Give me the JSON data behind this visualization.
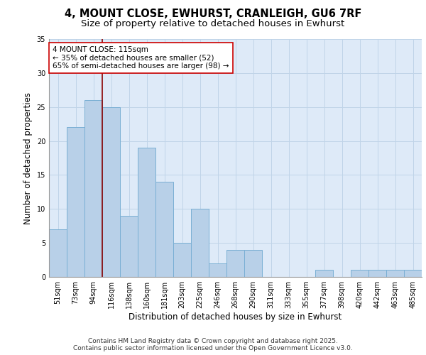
{
  "title_line1": "4, MOUNT CLOSE, EWHURST, CRANLEIGH, GU6 7RF",
  "title_line2": "Size of property relative to detached houses in Ewhurst",
  "xlabel": "Distribution of detached houses by size in Ewhurst",
  "ylabel": "Number of detached properties",
  "categories": [
    "51sqm",
    "73sqm",
    "94sqm",
    "116sqm",
    "138sqm",
    "160sqm",
    "181sqm",
    "203sqm",
    "225sqm",
    "246sqm",
    "268sqm",
    "290sqm",
    "311sqm",
    "333sqm",
    "355sqm",
    "377sqm",
    "398sqm",
    "420sqm",
    "442sqm",
    "463sqm",
    "485sqm"
  ],
  "values": [
    7,
    22,
    26,
    25,
    9,
    19,
    14,
    5,
    10,
    2,
    4,
    4,
    0,
    0,
    0,
    1,
    0,
    1,
    1,
    1,
    1
  ],
  "bar_color": "#b8d0e8",
  "bar_edgecolor": "#7aafd4",
  "bar_linewidth": 0.7,
  "grid_color": "#c0d4e8",
  "bg_color": "#deeaf8",
  "red_line_index": 3,
  "annotation_line1": "4 MOUNT CLOSE: 115sqm",
  "annotation_line2": "← 35% of detached houses are smaller (52)",
  "annotation_line3": "65% of semi-detached houses are larger (98) →",
  "ylim": [
    0,
    35
  ],
  "yticks": [
    0,
    5,
    10,
    15,
    20,
    25,
    30,
    35
  ],
  "footer_line1": "Contains HM Land Registry data © Crown copyright and database right 2025.",
  "footer_line2": "Contains public sector information licensed under the Open Government Licence v3.0.",
  "title_fontsize": 10.5,
  "subtitle_fontsize": 9.5,
  "axis_label_fontsize": 8.5,
  "tick_fontsize": 7,
  "annotation_fontsize": 7.5,
  "footer_fontsize": 6.5
}
